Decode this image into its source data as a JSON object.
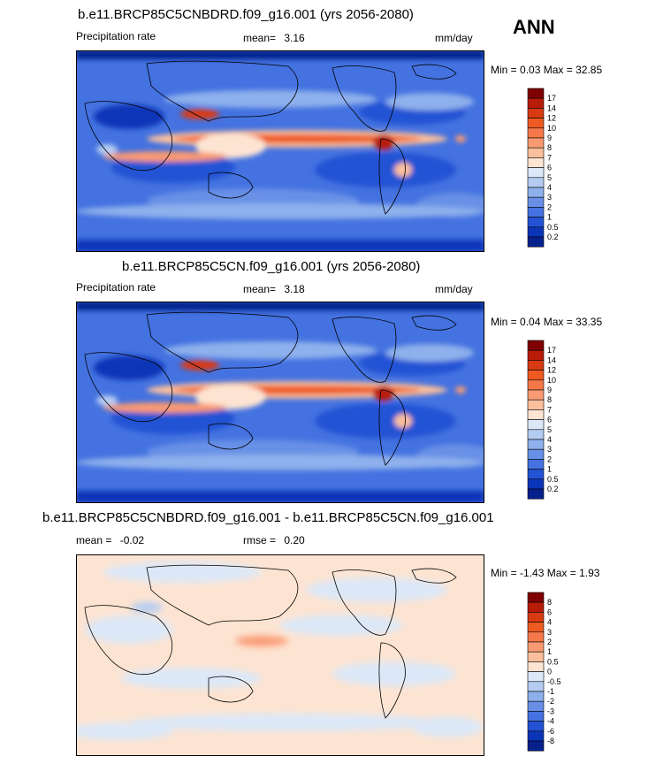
{
  "season": "ANN",
  "chart_data": [
    {
      "type": "heatmap",
      "title": "b.e11.BRCP85C5CNBDRD.f09_g16.001 (yrs 2056-2080)",
      "variable": "Precipitation rate",
      "mean_label": "mean=",
      "mean": "3.16",
      "units": "mm/day",
      "min_label": "Min =",
      "min": "0.03",
      "max_label": "Max =",
      "max": "32.85",
      "colorbar": {
        "levels": [
          "17",
          "14",
          "12",
          "10",
          "9",
          "8",
          "7",
          "6",
          "5",
          "4",
          "3",
          "2",
          "1",
          "0.5",
          "0.2"
        ],
        "colors": [
          "#7f0000",
          "#b81c08",
          "#d83a12",
          "#ee5a22",
          "#f5784a",
          "#f99a72",
          "#fbbf9c",
          "#fde4d2",
          "#dce8f8",
          "#b4ccf2",
          "#8eb0ec",
          "#6890e6",
          "#4472e0",
          "#2352d4",
          "#0a35b8",
          "#06208c"
        ]
      }
    },
    {
      "type": "heatmap",
      "title": "b.e11.BRCP85C5CN.f09_g16.001 (yrs 2056-2080)",
      "variable": "Precipitation rate",
      "mean_label": "mean=",
      "mean": "3.18",
      "units": "mm/day",
      "min_label": "Min =",
      "min": "0.04",
      "max_label": "Max =",
      "max": "33.35",
      "colorbar": {
        "levels": [
          "17",
          "14",
          "12",
          "10",
          "9",
          "8",
          "7",
          "6",
          "5",
          "4",
          "3",
          "2",
          "1",
          "0.5",
          "0.2"
        ],
        "colors": [
          "#7f0000",
          "#b81c08",
          "#d83a12",
          "#ee5a22",
          "#f5784a",
          "#f99a72",
          "#fbbf9c",
          "#fde4d2",
          "#dce8f8",
          "#b4ccf2",
          "#8eb0ec",
          "#6890e6",
          "#4472e0",
          "#2352d4",
          "#0a35b8",
          "#06208c"
        ]
      }
    },
    {
      "type": "heatmap",
      "title": "b.e11.BRCP85C5CNBDRD.f09_g16.001 - b.e11.BRCP85C5CN.f09_g16.001",
      "mean_label": "mean =",
      "mean": "-0.02",
      "rmse_label": "rmse =",
      "rmse": "0.20",
      "min_label": "Min =",
      "min": "-1.43",
      "max_label": "Max =",
      "max": "1.93",
      "colorbar": {
        "levels": [
          "8",
          "6",
          "4",
          "3",
          "2",
          "1",
          "0.5",
          "0",
          "-0.5",
          "-1",
          "-2",
          "-3",
          "-4",
          "-6",
          "-8"
        ],
        "colors": [
          "#7f0000",
          "#b81c08",
          "#d83a12",
          "#ee5a22",
          "#f5784a",
          "#f99a72",
          "#fbbf9c",
          "#fde4d2",
          "#dce8f8",
          "#b4ccf2",
          "#8eb0ec",
          "#6890e6",
          "#4472e0",
          "#2352d4",
          "#0a35b8",
          "#06208c"
        ]
      }
    }
  ]
}
